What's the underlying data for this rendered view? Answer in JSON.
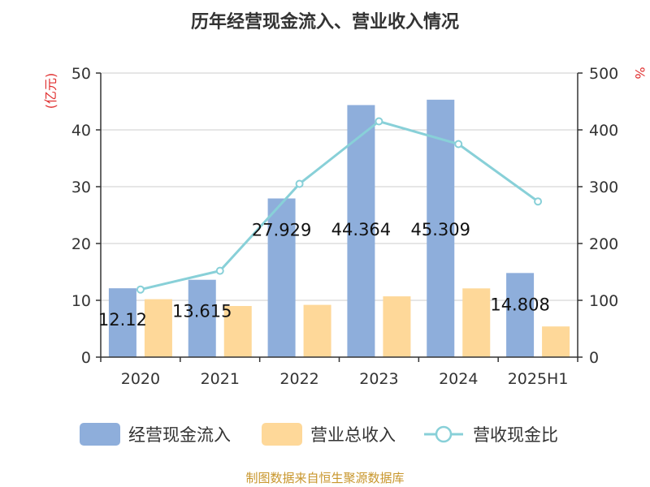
{
  "title": "历年经营现金流入、营业收入情况",
  "source": "制图数据来自恒生聚源数据库",
  "chart_data": {
    "type": "bar",
    "categories": [
      "2020",
      "2021",
      "2022",
      "2023",
      "2024",
      "2025H1"
    ],
    "y_left_unit": "(亿元)",
    "y_right_unit": "%",
    "y_left_range": [
      0,
      50
    ],
    "y_left_ticks": [
      0,
      10,
      20,
      30,
      40,
      50
    ],
    "y_right_range": [
      0,
      500
    ],
    "y_right_ticks": [
      0,
      100,
      200,
      300,
      400,
      500
    ],
    "grid": true,
    "legend_position": "bottom",
    "series": [
      {
        "name": "经营现金流入",
        "type": "bar",
        "axis": "left",
        "color": "#8eaedb",
        "values": [
          12.12,
          13.615,
          27.929,
          44.364,
          45.309,
          14.808
        ],
        "labels": [
          "12.12",
          "13.615",
          "27.929",
          "44.364",
          "45.309",
          "14.808"
        ]
      },
      {
        "name": "营业总收入",
        "type": "bar",
        "axis": "left",
        "color": "#fed899",
        "values": [
          10.2,
          9.0,
          9.2,
          10.7,
          12.1,
          5.4
        ]
      },
      {
        "name": "营收现金比",
        "type": "line",
        "axis": "right",
        "color": "#88d0d8",
        "values": [
          119,
          152,
          305,
          415,
          375,
          274
        ]
      }
    ]
  }
}
